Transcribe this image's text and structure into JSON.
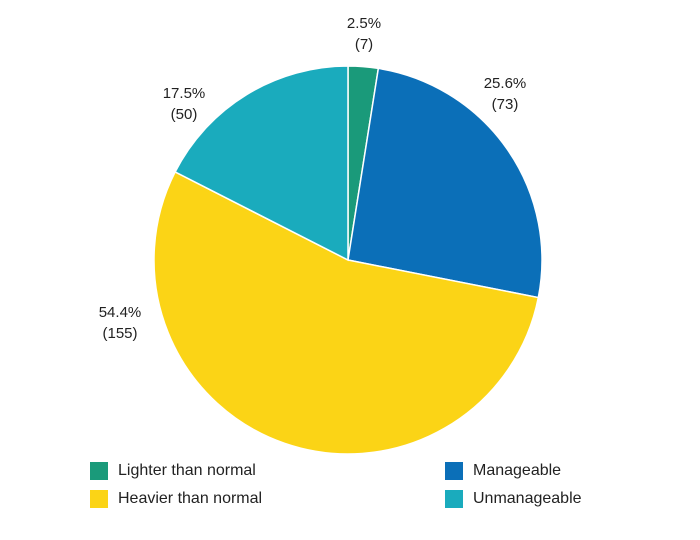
{
  "chart_data": {
    "type": "pie",
    "title": "",
    "slices": [
      {
        "name": "Lighter than normal",
        "percent": 2.5,
        "count": 7,
        "pct_label": "2.5%",
        "count_label": "(7)",
        "color": "#1a9a7a"
      },
      {
        "name": "Manageable",
        "percent": 25.6,
        "count": 73,
        "pct_label": "25.6%",
        "count_label": "(73)",
        "color": "#0b6fb8"
      },
      {
        "name": "Heavier than normal",
        "percent": 54.4,
        "count": 155,
        "pct_label": "54.4%",
        "count_label": "(155)",
        "color": "#fbd416"
      },
      {
        "name": "Unmanageable",
        "percent": 17.5,
        "count": 50,
        "pct_label": "17.5%",
        "count_label": "(50)",
        "color": "#1aabbd"
      }
    ],
    "legend": {
      "placement": "bottom",
      "items": [
        {
          "label": "Lighter than normal",
          "color": "#1a9a7a"
        },
        {
          "label": "Manageable",
          "color": "#0b6fb8"
        },
        {
          "label": "Heavier than normal",
          "color": "#fbd416"
        },
        {
          "label": "Unmanageable",
          "color": "#1aabbd"
        }
      ]
    }
  }
}
